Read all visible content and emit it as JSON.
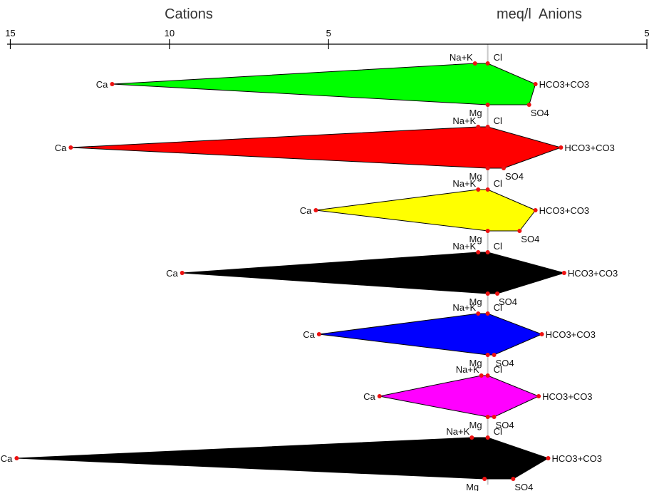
{
  "chart_data": {
    "type": "stiff-diagram",
    "headers": {
      "cations": "Cations",
      "anions": "meq/l  Anions"
    },
    "x_axis": {
      "tick_labels": [
        "15",
        "10",
        "5",
        "5"
      ],
      "tick_values": [
        -15,
        -10,
        -5,
        5
      ],
      "range": [
        -15.1,
        5
      ]
    },
    "ion_labels": {
      "nak": "Na+K",
      "ca": "Ca",
      "mg": "Mg",
      "cl": "Cl",
      "hco3": "HCO3+CO3",
      "so4": "SO4"
    },
    "colors": {
      "marker": "#ee1111",
      "axis": "#c8c8c8"
    },
    "samples": [
      {
        "color": "#00ff00",
        "na_k": 0.4,
        "ca": 11.8,
        "mg": 0.0,
        "cl": 0.0,
        "hco3": 1.5,
        "so4": 1.3
      },
      {
        "color": "#ff0000",
        "na_k": 0.3,
        "ca": 13.1,
        "mg": 0.0,
        "cl": 0.0,
        "hco3": 2.3,
        "so4": 0.5
      },
      {
        "color": "#ffff00",
        "na_k": 0.3,
        "ca": 5.4,
        "mg": 0.0,
        "cl": 0.0,
        "hco3": 1.5,
        "so4": 1.0
      },
      {
        "color": "#000000",
        "na_k": 0.3,
        "ca": 9.6,
        "mg": 0.0,
        "cl": 0.0,
        "hco3": 2.4,
        "so4": 0.3
      },
      {
        "color": "#0000ff",
        "na_k": 0.3,
        "ca": 5.3,
        "mg": 0.0,
        "cl": 0.0,
        "hco3": 1.7,
        "so4": 0.2
      },
      {
        "color": "#ff00ff",
        "na_k": 0.2,
        "ca": 3.4,
        "mg": 0.0,
        "cl": 0.0,
        "hco3": 1.6,
        "so4": 0.2
      },
      {
        "color": "#000000",
        "na_k": 0.5,
        "ca": 14.8,
        "mg": 0.1,
        "cl": 0.0,
        "hco3": 1.9,
        "so4": 0.8
      }
    ]
  }
}
